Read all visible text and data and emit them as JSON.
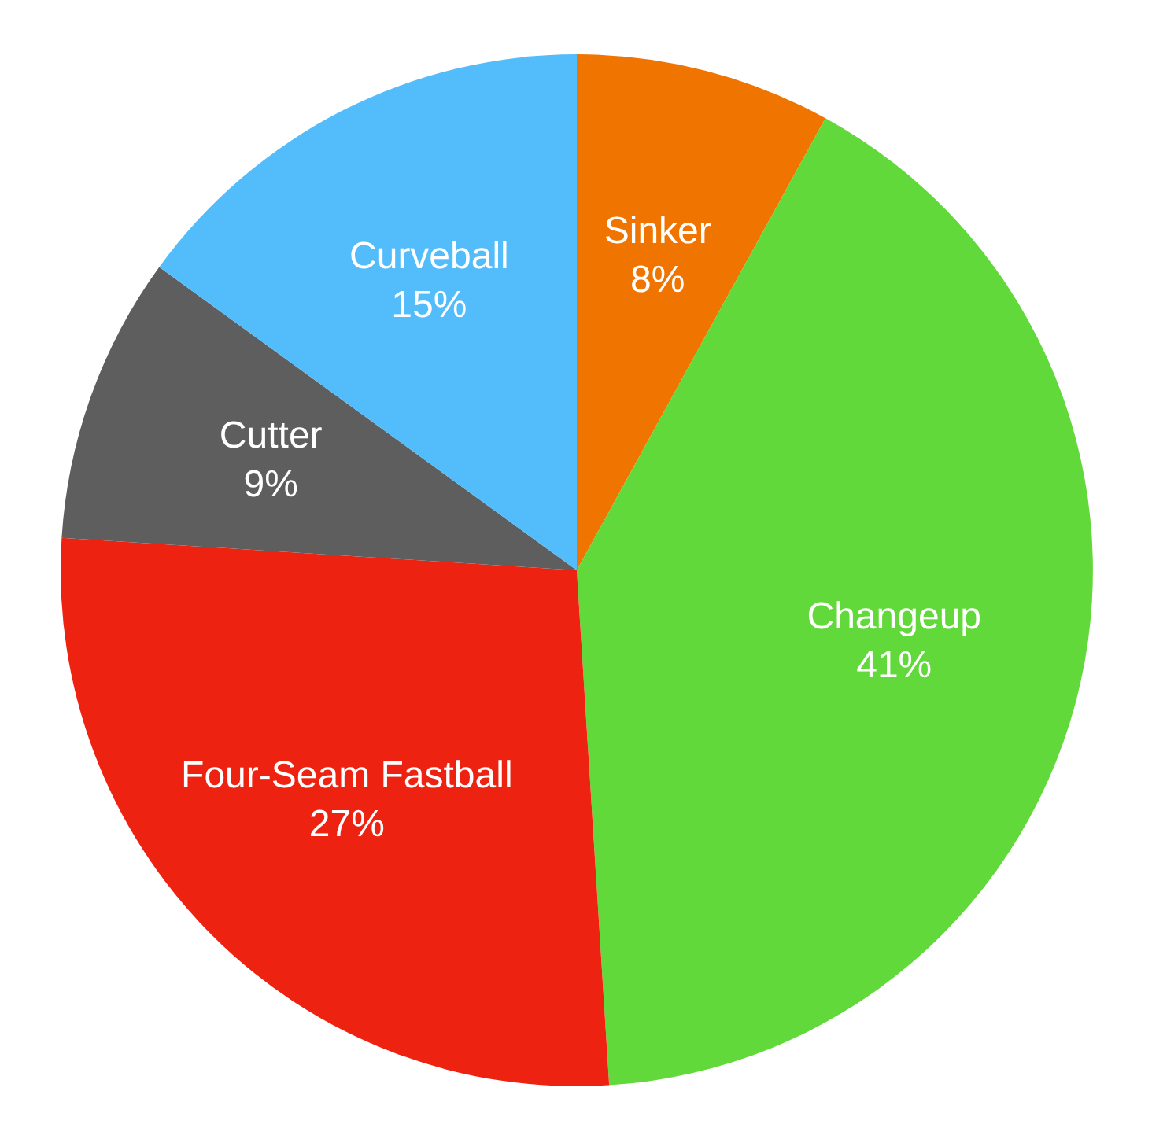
{
  "chart_data": {
    "type": "pie",
    "categories": [
      "Sinker",
      "Changeup",
      "Four-Seam Fastball",
      "Cutter",
      "Curveball"
    ],
    "values": [
      8,
      41,
      27,
      9,
      15
    ],
    "colors": [
      "#f07400",
      "#62d93a",
      "#ee2210",
      "#5e5e5e",
      "#53bcfb"
    ],
    "value_labels": [
      "8%",
      "41%",
      "27%",
      "9%",
      "15%"
    ]
  }
}
